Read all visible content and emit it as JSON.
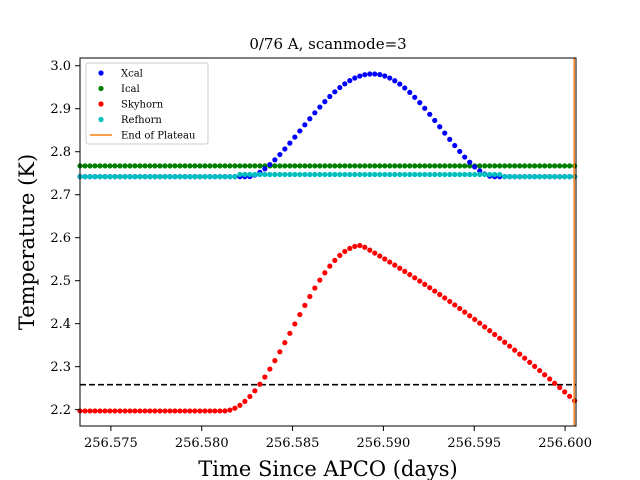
{
  "chart_data": {
    "type": "scatter",
    "title": "0/76 A, scanmode=3",
    "xlabel": "Time Since APCO (days)",
    "ylabel": "Temperature (K)",
    "xlim": [
      256.5733,
      256.6006
    ],
    "ylim": [
      2.162,
      3.018
    ],
    "xticks": [
      256.575,
      256.58,
      256.585,
      256.59,
      256.595,
      256.6
    ],
    "xtick_labels": [
      "256.575",
      "256.580",
      "256.585",
      "256.590",
      "256.595",
      "256.600"
    ],
    "yticks": [
      2.2,
      2.3,
      2.4,
      2.5,
      2.6,
      2.7,
      2.8,
      2.9,
      3.0
    ],
    "ytick_labels": [
      "2.2",
      "2.3",
      "2.4",
      "2.5",
      "2.6",
      "2.7",
      "2.8",
      "2.9",
      "3.0"
    ],
    "grid": false,
    "legend_position": "top-left",
    "sampling": {
      "x_start": 256.5733,
      "x_step": 0.000275,
      "count": 100
    },
    "series": [
      {
        "name": "Xcal",
        "color": "#0000ff",
        "marker": "dot",
        "baseline": 2.742,
        "peak": 2.981,
        "peak_x": 256.5894,
        "rise_start_x": 256.5826,
        "fall_end_x": 256.596
      },
      {
        "name": "Ical",
        "color": "#008000",
        "marker": "dot",
        "constant": 2.767
      },
      {
        "name": "Skyhorn",
        "color": "#ff0000",
        "marker": "dot",
        "baseline": 2.197,
        "rise_start_x": 256.5812,
        "peak": 2.582,
        "peak_x": 256.5888,
        "end_value": 2.218,
        "end_x": 256.6006
      },
      {
        "name": "Refhorn",
        "color": "#00bfbf",
        "marker": "dot",
        "baseline": 2.742,
        "bump": 2.747,
        "bump_start_x": 256.582,
        "bump_end_x": 256.5965
      },
      {
        "name": "End of Plateau",
        "color": "#ff7f0e",
        "marker": "line",
        "x": 256.6005
      }
    ],
    "reference_lines": [
      {
        "y": 2.767,
        "style": "dashed",
        "color": "#000000"
      },
      {
        "y": 2.258,
        "style": "dashed",
        "color": "#000000"
      }
    ]
  }
}
